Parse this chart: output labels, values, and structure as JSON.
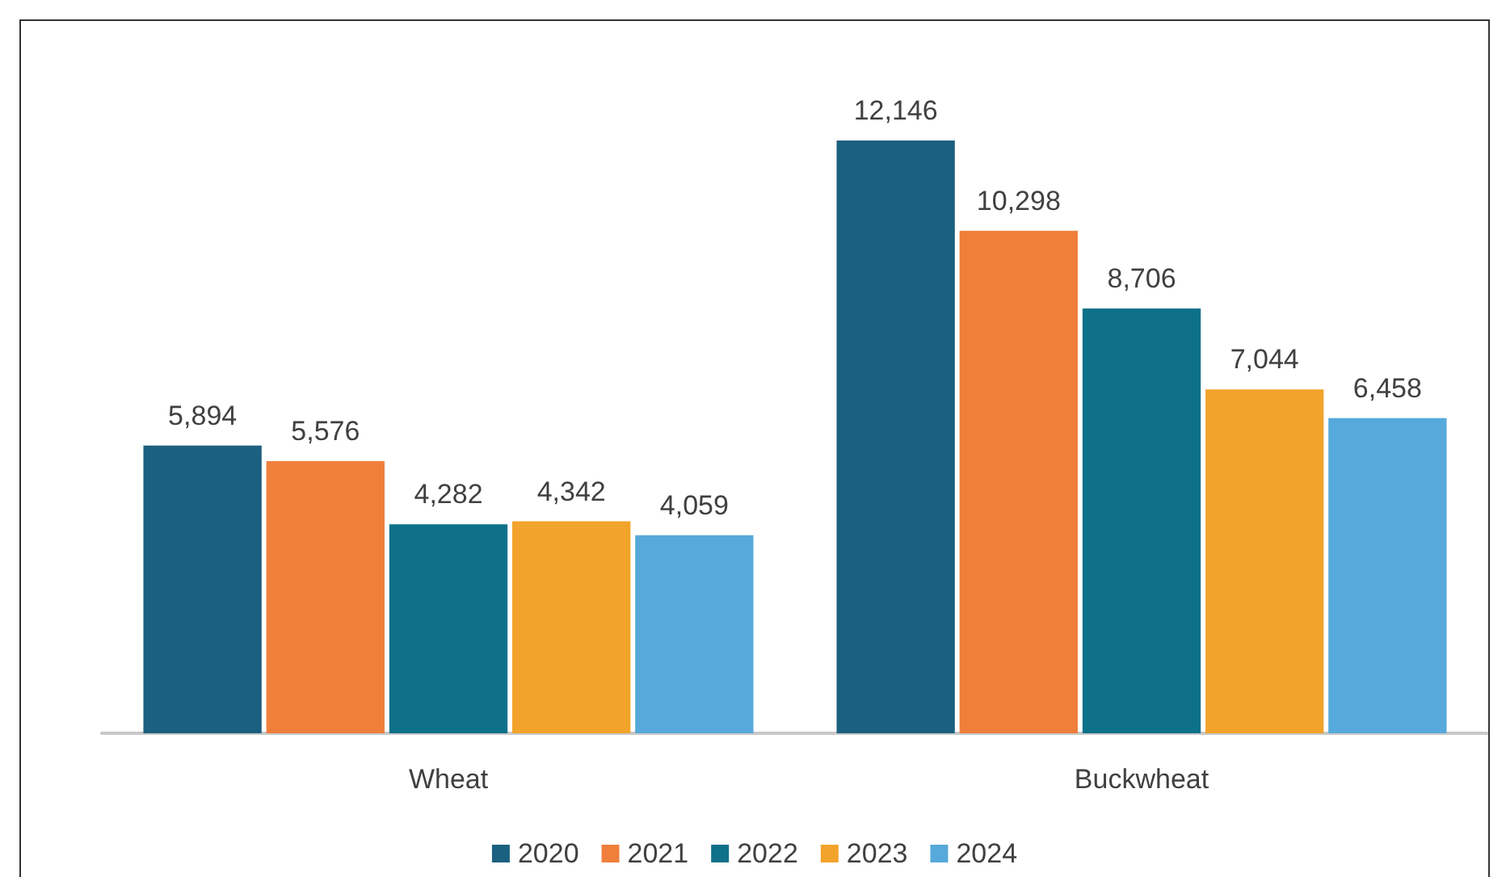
{
  "chart_data": {
    "type": "bar",
    "categories": [
      "Wheat",
      "Buckwheat"
    ],
    "series": [
      {
        "name": "2020",
        "color": "#1b6080",
        "values": [
          5894,
          12146
        ],
        "value_labels": [
          "5,894",
          "12,146"
        ]
      },
      {
        "name": "2021",
        "color": "#f07f3c",
        "values": [
          5576,
          10298
        ],
        "value_labels": [
          "5,576",
          "10,298"
        ]
      },
      {
        "name": "2022",
        "color": "#0e7189",
        "values": [
          4282,
          8706
        ],
        "value_labels": [
          "4,282",
          "8,706"
        ]
      },
      {
        "name": "2023",
        "color": "#f2a32b",
        "values": [
          4342,
          7044
        ],
        "value_labels": [
          "4,342",
          "7,044"
        ]
      },
      {
        "name": "2024",
        "color": "#56a9da",
        "values": [
          4059,
          6458
        ],
        "value_labels": [
          "4,059",
          "6,458"
        ]
      }
    ],
    "grid": false,
    "legend": "bottom"
  }
}
